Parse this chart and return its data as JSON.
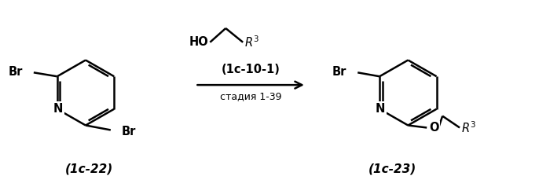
{
  "background_color": "#ffffff",
  "figure_width": 7.0,
  "figure_height": 2.38,
  "dpi": 100,
  "label_1c22": "(1c-22)",
  "label_1c23": "(1c-23)",
  "reagent_label": "(1c-10-1)",
  "stage_label": "стадия 1-39",
  "alcohol_label": "HO",
  "br_label": "Br",
  "n_label": "N",
  "o_label": "O"
}
